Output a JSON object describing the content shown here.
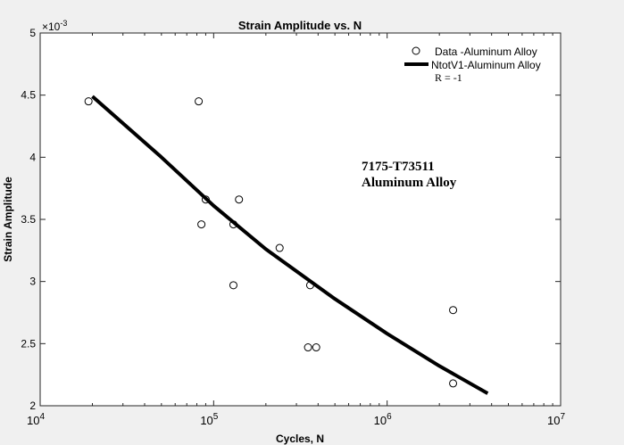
{
  "chart_data": {
    "type": "scatter",
    "title": "Strain Amplitude vs. N",
    "xlabel": "Cycles, N",
    "ylabel": "Strain Amplitude",
    "x_scale": "log",
    "xlim": [
      10000,
      10000000
    ],
    "ylim": [
      0.002,
      0.005
    ],
    "y_exponent_label": "×10",
    "y_exponent_value": "-3",
    "x_ticks": [
      {
        "value": 10000,
        "base": "10",
        "exp": "4"
      },
      {
        "value": 100000,
        "base": "10",
        "exp": "5"
      },
      {
        "value": 1000000,
        "base": "10",
        "exp": "6"
      },
      {
        "value": 10000000,
        "base": "10",
        "exp": "7"
      }
    ],
    "y_ticks": [
      {
        "value": 0.002,
        "label": "2"
      },
      {
        "value": 0.0025,
        "label": "2.5"
      },
      {
        "value": 0.003,
        "label": "3"
      },
      {
        "value": 0.0035,
        "label": "3.5"
      },
      {
        "value": 0.004,
        "label": "4"
      },
      {
        "value": 0.0045,
        "label": "4.5"
      },
      {
        "value": 0.005,
        "label": "5"
      }
    ],
    "grid": false,
    "legend_position": "top-right",
    "series": [
      {
        "name": "Data -Aluminum Alloy",
        "kind": "markers",
        "marker": "open-circle",
        "color": "#000000",
        "points": [
          {
            "x": 19000,
            "y": 0.00445
          },
          {
            "x": 82000,
            "y": 0.00445
          },
          {
            "x": 90000,
            "y": 0.00366
          },
          {
            "x": 140000,
            "y": 0.00366
          },
          {
            "x": 85000,
            "y": 0.00346
          },
          {
            "x": 130000,
            "y": 0.00346
          },
          {
            "x": 240000,
            "y": 0.00327
          },
          {
            "x": 130000,
            "y": 0.00297
          },
          {
            "x": 360000,
            "y": 0.00297
          },
          {
            "x": 350000,
            "y": 0.00247
          },
          {
            "x": 390000,
            "y": 0.00247
          },
          {
            "x": 2400000,
            "y": 0.00277
          },
          {
            "x": 2400000,
            "y": 0.00218
          }
        ]
      },
      {
        "name": "NtotV1-Aluminum Alloy",
        "kind": "line",
        "color": "#000000",
        "points": [
          {
            "x": 20000,
            "y": 0.00449
          },
          {
            "x": 50000,
            "y": 0.004
          },
          {
            "x": 100000,
            "y": 0.00361
          },
          {
            "x": 200000,
            "y": 0.00326
          },
          {
            "x": 500000,
            "y": 0.00286
          },
          {
            "x": 1000000,
            "y": 0.00258
          },
          {
            "x": 2000000,
            "y": 0.00232
          },
          {
            "x": 3800000,
            "y": 0.0021
          }
        ]
      }
    ],
    "legend_extra": "R = -1",
    "annotation": {
      "lines": [
        "7175-T73511",
        "Aluminum Alloy"
      ]
    }
  }
}
